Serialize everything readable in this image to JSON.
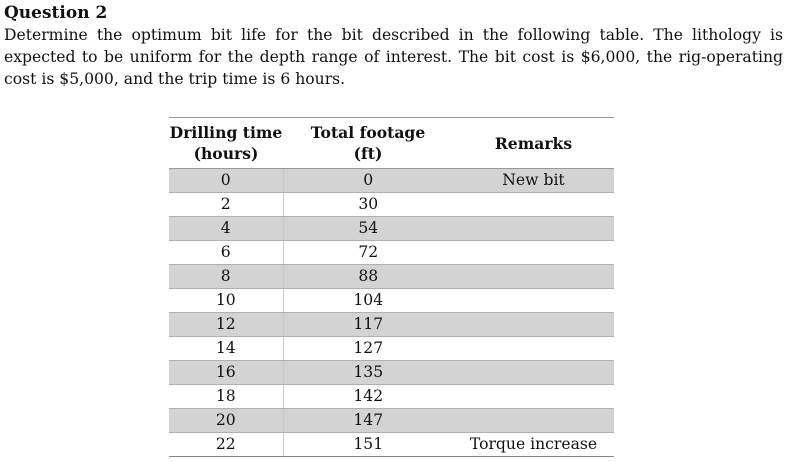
{
  "question": {
    "title": "Question 2",
    "body": "Determine the optimum bit life for the bit described in the following table.  The lithology is expected to be uniform for the depth range of interest.  The bit cost is $6,000, the rig-operating cost is $5,000, and the trip time is 6 hours."
  },
  "table": {
    "headers": {
      "time_line1": "Drilling time",
      "time_line2": "(hours)",
      "footage_line1": "Total footage",
      "footage_line2": "(ft)",
      "remarks": "Remarks"
    },
    "rows": [
      {
        "time": "0",
        "footage": "0",
        "remarks": "New bit"
      },
      {
        "time": "2",
        "footage": "30",
        "remarks": ""
      },
      {
        "time": "4",
        "footage": "54",
        "remarks": ""
      },
      {
        "time": "6",
        "footage": "72",
        "remarks": ""
      },
      {
        "time": "8",
        "footage": "88",
        "remarks": ""
      },
      {
        "time": "10",
        "footage": "104",
        "remarks": ""
      },
      {
        "time": "12",
        "footage": "117",
        "remarks": ""
      },
      {
        "time": "14",
        "footage": "127",
        "remarks": ""
      },
      {
        "time": "16",
        "footage": "135",
        "remarks": ""
      },
      {
        "time": "18",
        "footage": "142",
        "remarks": ""
      },
      {
        "time": "20",
        "footage": "147",
        "remarks": ""
      },
      {
        "time": "22",
        "footage": "151",
        "remarks": "Torque increase"
      }
    ]
  }
}
